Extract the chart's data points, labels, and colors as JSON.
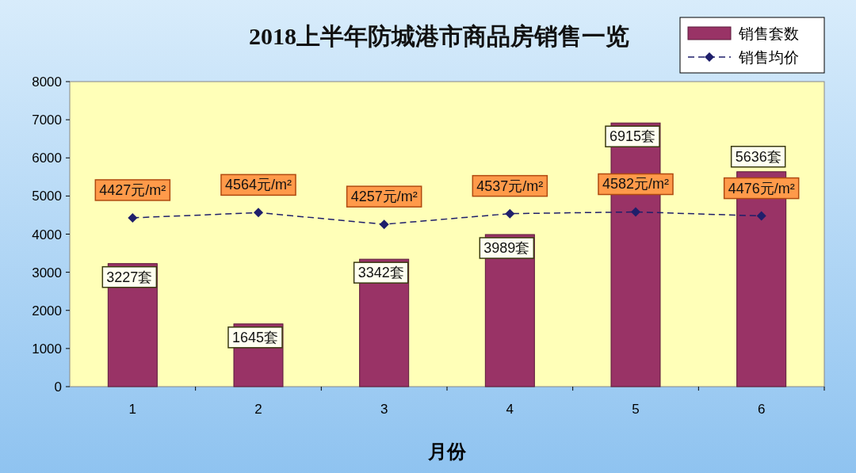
{
  "chart_data": {
    "type": "bar",
    "title": "2018上半年防城港市商品房销售一览",
    "xlabel": "月份",
    "categories": [
      "1",
      "2",
      "3",
      "4",
      "5",
      "6"
    ],
    "ylim": [
      0,
      8000
    ],
    "yticks": [
      0,
      1000,
      2000,
      3000,
      4000,
      5000,
      6000,
      7000,
      8000
    ],
    "grid": false,
    "legend": "top right",
    "series": [
      {
        "name": "销售套数",
        "color": "#993366",
        "values": [
          3227,
          1645,
          3342,
          3989,
          6915,
          5636
        ],
        "value_labels": [
          "3227套",
          "1645套",
          "3342套",
          "3989套",
          "6915套",
          "5636套"
        ]
      },
      {
        "name": "销售均价",
        "type": "line",
        "color": "#1f1f6b",
        "marker": "diamond",
        "line_style": "dashed",
        "values": [
          4427,
          4564,
          4257,
          4537,
          4582,
          4476
        ],
        "value_labels": [
          "4427元/m²",
          "4564元/m²",
          "4257元/m²",
          "4537元/m²",
          "4582元/m²",
          "4476元/m²"
        ]
      }
    ]
  }
}
